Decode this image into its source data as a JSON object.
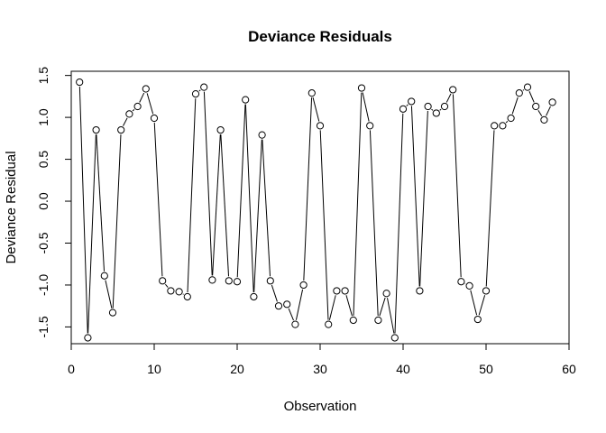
{
  "chart_data": {
    "type": "line",
    "title": "Deviance Residuals",
    "xlabel": "Observation",
    "ylabel": "Deviance Residual",
    "xlim": [
      0,
      60
    ],
    "ylim": [
      -1.7,
      1.55
    ],
    "xticks": [
      0,
      10,
      20,
      30,
      40,
      50,
      60
    ],
    "yticks": [
      -1.5,
      -1.0,
      -0.5,
      0.0,
      0.5,
      1.0,
      1.5
    ],
    "ytick_labels": [
      "-1.5",
      "-1.0",
      "-0.5",
      "0.0",
      "0.5",
      "1.0",
      "1.5"
    ],
    "marker": "open-circle",
    "line_style": "connected",
    "grid": false,
    "series": [
      {
        "x": [
          1,
          2,
          3,
          4,
          5,
          6,
          7,
          8,
          9,
          10,
          11,
          12,
          13,
          14,
          15,
          16,
          17,
          18,
          19,
          20,
          21,
          22,
          23,
          24,
          25,
          26,
          27,
          28,
          29,
          30,
          31,
          32,
          33,
          34,
          35,
          36,
          37,
          38,
          39,
          40,
          41,
          42,
          43,
          44,
          45,
          46,
          47,
          48,
          49,
          50,
          51,
          52,
          53,
          54,
          55,
          56,
          57,
          58
        ],
        "values": [
          1.42,
          -1.63,
          0.85,
          -0.89,
          -1.33,
          0.85,
          1.04,
          1.13,
          1.34,
          0.99,
          -0.95,
          -1.07,
          -1.08,
          -1.14,
          1.28,
          1.36,
          -0.94,
          0.85,
          -0.95,
          -0.96,
          1.21,
          -1.14,
          0.79,
          -0.95,
          -1.25,
          -1.23,
          -1.47,
          -1.0,
          1.29,
          0.9,
          -1.47,
          -1.07,
          -1.07,
          -1.42,
          1.35,
          0.9,
          -1.42,
          -1.1,
          -1.63,
          1.1,
          1.19,
          -1.07,
          1.13,
          1.05,
          1.13,
          1.33,
          -0.96,
          -1.01,
          -1.41,
          -1.07,
          0.9,
          0.9,
          0.99,
          1.29,
          1.36,
          1.13,
          0.97,
          1.18
        ]
      }
    ]
  }
}
